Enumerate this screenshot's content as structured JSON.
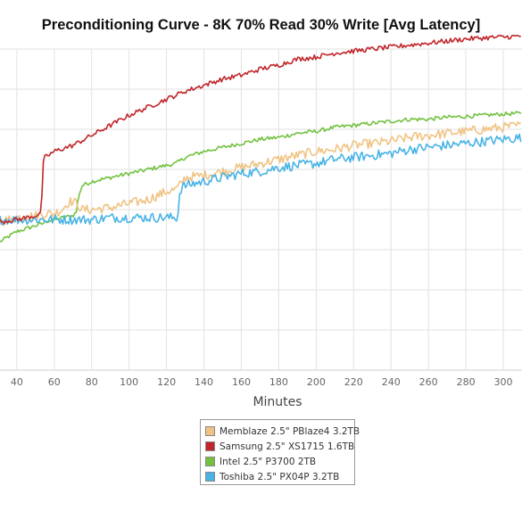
{
  "chart_data": {
    "type": "line",
    "title": "Preconditioning Curve - 8K 70% Read 30% Write [Avg Latency]",
    "xlabel": "Minutes",
    "ylabel": "",
    "x_ticks": [
      40,
      60,
      80,
      100,
      120,
      140,
      160,
      180,
      200,
      220,
      240,
      260,
      280,
      300
    ],
    "xlim": [
      31,
      310
    ],
    "ylim": [
      0,
      8
    ],
    "grid": true,
    "legend_position": "bottom",
    "series": [
      {
        "name": "Memblaze 2.5\" PBlaze4 3.2TB",
        "color": "#f0c383",
        "x": [
          31,
          40,
          50,
          55,
          60,
          64,
          68,
          70,
          72,
          75,
          80,
          90,
          100,
          110,
          115,
          120,
          125,
          128,
          130,
          140,
          150,
          160,
          170,
          180,
          190,
          200,
          210,
          220,
          230,
          240,
          250,
          260,
          270,
          280,
          290,
          300,
          310
        ],
        "y": [
          3.7,
          3.8,
          3.85,
          3.9,
          3.9,
          4.0,
          4.2,
          4.2,
          4.15,
          4.0,
          4.0,
          4.05,
          4.15,
          4.25,
          4.35,
          4.45,
          4.5,
          4.65,
          4.8,
          4.85,
          4.95,
          5.05,
          5.15,
          5.25,
          5.35,
          5.45,
          5.5,
          5.6,
          5.65,
          5.7,
          5.8,
          5.85,
          5.9,
          5.95,
          6.0,
          6.05,
          6.1
        ],
        "noise": 0.12
      },
      {
        "name": "Samsung 2.5\" XS1715 1.6TB",
        "color": "#c0262b",
        "x": [
          31,
          40,
          50,
          53,
          54,
          55,
          60,
          70,
          80,
          90,
          100,
          110,
          120,
          130,
          140,
          150,
          160,
          170,
          180,
          190,
          200,
          210,
          220,
          230,
          240,
          250,
          260,
          270,
          280,
          290,
          300,
          310
        ],
        "y": [
          3.7,
          3.75,
          3.85,
          3.9,
          5.1,
          5.3,
          5.45,
          5.6,
          5.85,
          6.1,
          6.35,
          6.55,
          6.75,
          6.95,
          7.1,
          7.25,
          7.35,
          7.5,
          7.6,
          7.75,
          7.8,
          7.9,
          7.95,
          8.0,
          8.05,
          8.1,
          8.15,
          8.2,
          8.25,
          8.28,
          8.3,
          8.32
        ],
        "noise": 0.06
      },
      {
        "name": "Intel 2.5\" P3700 2TB",
        "color": "#72c240",
        "x": [
          31,
          40,
          50,
          54,
          55,
          60,
          70,
          72,
          73,
          75,
          80,
          90,
          100,
          110,
          120,
          125,
          130,
          140,
          150,
          160,
          170,
          180,
          190,
          200,
          210,
          220,
          230,
          240,
          250,
          260,
          270,
          280,
          290,
          300,
          310
        ],
        "y": [
          3.2,
          3.45,
          3.6,
          3.65,
          3.7,
          3.75,
          3.85,
          3.95,
          4.35,
          4.6,
          4.7,
          4.8,
          4.9,
          5.0,
          5.1,
          5.15,
          5.3,
          5.45,
          5.55,
          5.65,
          5.75,
          5.8,
          5.9,
          5.95,
          6.05,
          6.1,
          6.15,
          6.2,
          6.25,
          6.25,
          6.3,
          6.32,
          6.35,
          6.38,
          6.4
        ],
        "noise": 0.05
      },
      {
        "name": "Toshiba 2.5\" PX04P 3.2TB",
        "color": "#49b3e6",
        "x": [
          31,
          40,
          50,
          60,
          70,
          80,
          90,
          100,
          110,
          120,
          126,
          127,
          128,
          130,
          140,
          150,
          160,
          170,
          180,
          190,
          200,
          210,
          220,
          230,
          240,
          250,
          260,
          270,
          280,
          290,
          300,
          310
        ],
        "y": [
          3.75,
          3.75,
          3.75,
          3.75,
          3.75,
          3.75,
          3.8,
          3.8,
          3.8,
          3.8,
          3.8,
          4.4,
          4.55,
          4.6,
          4.7,
          4.8,
          4.9,
          4.95,
          5.05,
          5.1,
          5.15,
          5.25,
          5.3,
          5.35,
          5.4,
          5.5,
          5.55,
          5.6,
          5.65,
          5.7,
          5.75,
          5.8
        ],
        "noise": 0.12
      }
    ]
  }
}
